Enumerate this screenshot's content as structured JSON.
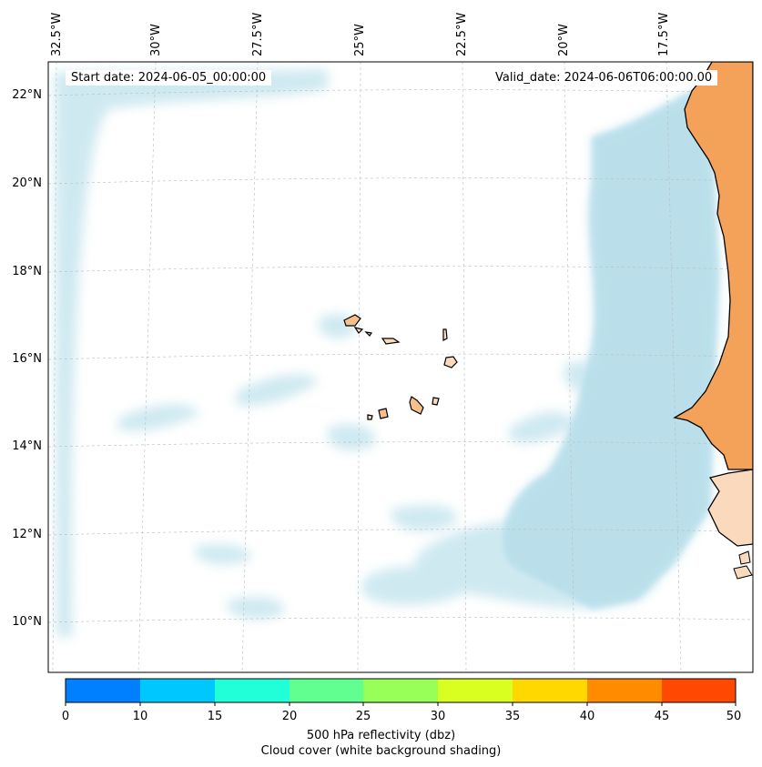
{
  "map": {
    "start_date_label": "Start date: 2024-06-05_00:00:00",
    "valid_date_label": "Valid_date: 2024-06-06T06:00:00.00",
    "longitude_labels": [
      "32.5°W",
      "30°W",
      "27.5°W",
      "25°W",
      "22.5°W",
      "20°W",
      "17.5°W"
    ],
    "latitude_labels": [
      "22°N",
      "20°N",
      "18°N",
      "16°N",
      "14°N",
      "12°N",
      "10°N"
    ],
    "colors": {
      "cloud_shading": "#a9d8e6",
      "land_fill": "#f4a25a",
      "land_light": "#fbd9bd",
      "coastline": "#000000",
      "gridline": "#bbbbbb"
    }
  },
  "colorbar": {
    "ticks": [
      "0",
      "10",
      "15",
      "20",
      "25",
      "30",
      "35",
      "40",
      "45",
      "50"
    ],
    "colors": [
      "#0080ff",
      "#00c8ff",
      "#20ffd8",
      "#60ff90",
      "#98ff58",
      "#d8ff20",
      "#ffd800",
      "#ff8c00",
      "#ff4800"
    ],
    "label_line1": "500 hPa reflectivity (dbz)",
    "label_line2": "Cloud cover (white background shading)"
  }
}
